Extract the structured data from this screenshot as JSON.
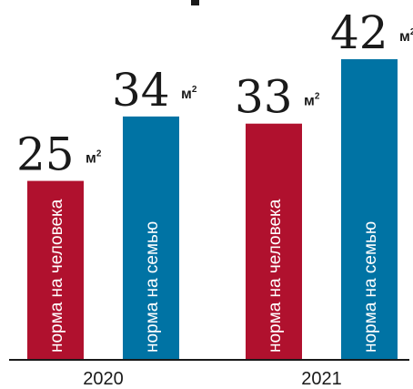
{
  "chart_data": {
    "type": "bar",
    "categories": [
      "2020",
      "2021"
    ],
    "series": [
      {
        "label": "норма на человека",
        "values": [
          25,
          33
        ],
        "color": "#b0112e"
      },
      {
        "label": "норма на семью",
        "values": [
          34,
          42
        ],
        "color": "#0073a4"
      }
    ],
    "unit": "м²",
    "ylim": [
      0,
      45
    ],
    "grid": false,
    "title": ""
  }
}
